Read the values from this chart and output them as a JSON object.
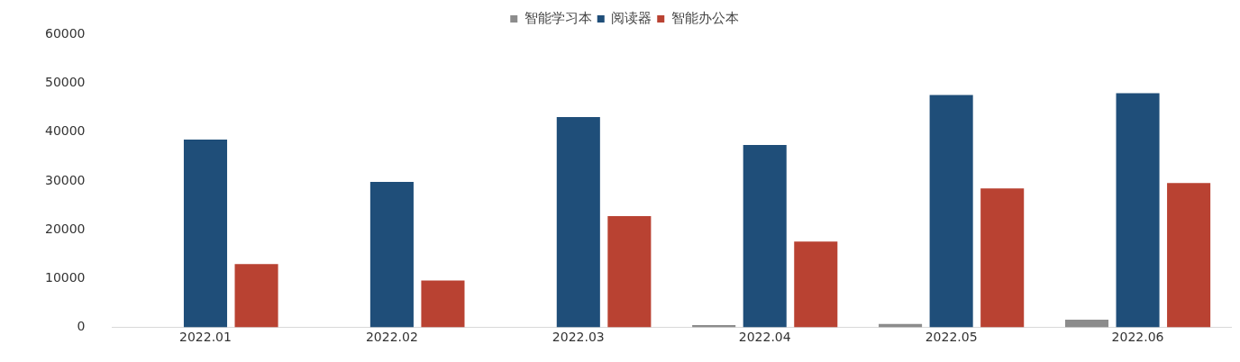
{
  "chart_data": {
    "type": "bar",
    "categories": [
      "2022.01",
      "2022.02",
      "2022.03",
      "2022.04",
      "2022.05",
      "2022.06"
    ],
    "series": [
      {
        "name": "智能学习本",
        "color": "#8c8c8c",
        "values": [
          0,
          0,
          0,
          500,
          700,
          1600
        ]
      },
      {
        "name": "阅读器",
        "color": "#1f4e79",
        "values": [
          38500,
          29800,
          43100,
          37400,
          47600,
          48000
        ]
      },
      {
        "name": "智能办公本",
        "color": "#b94232",
        "values": [
          13000,
          9600,
          22800,
          17600,
          28500,
          29600
        ]
      }
    ],
    "ylim": [
      0,
      60000
    ],
    "yticks": [
      0,
      10000,
      20000,
      30000,
      40000,
      50000,
      60000
    ],
    "grid": false,
    "legend": "top"
  }
}
